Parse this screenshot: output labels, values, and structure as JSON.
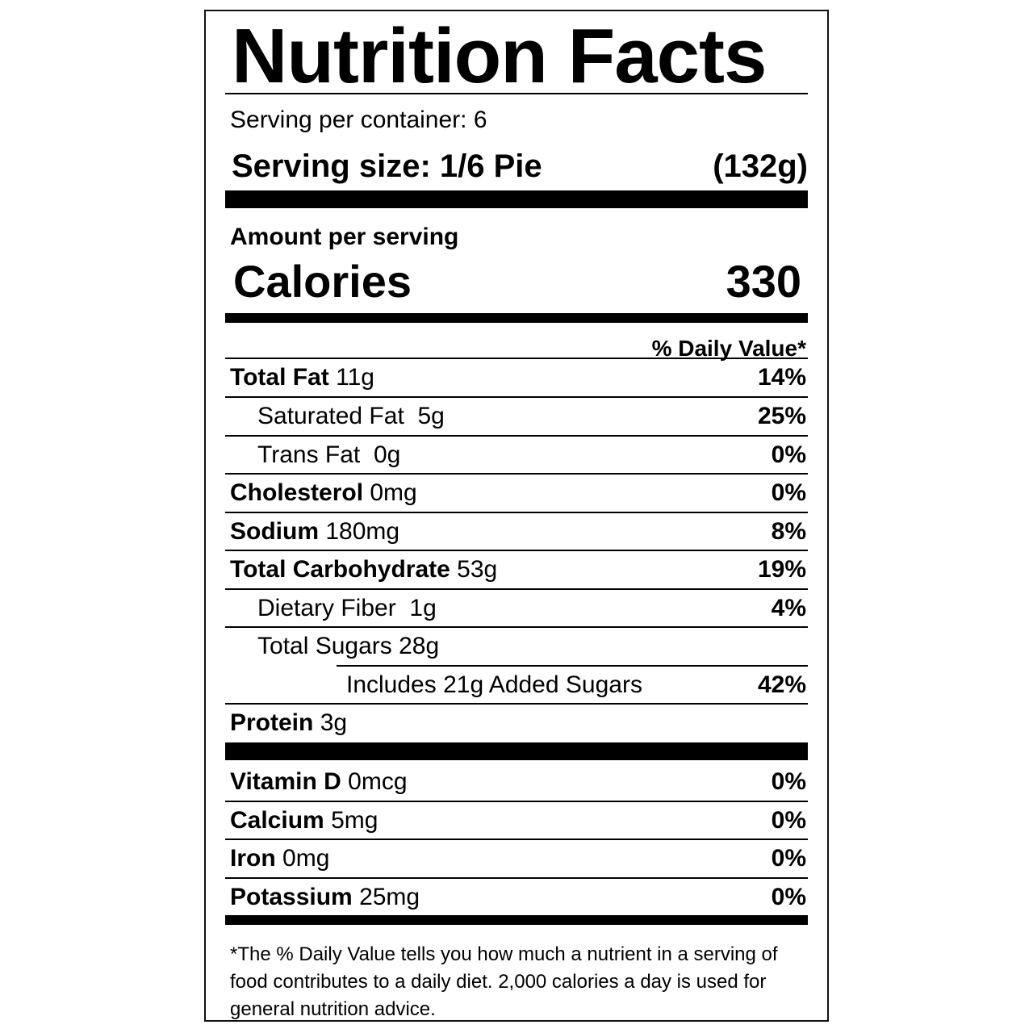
{
  "title": "Nutrition Facts",
  "servings_per_container": "Serving per container: 6",
  "serving_size": {
    "label": "Serving size: 1/6 Pie",
    "weight": "(132g)"
  },
  "amount_per_serving": "Amount per serving",
  "calories": {
    "label": "Calories",
    "value": "330"
  },
  "daily_value_header": "% Daily Value*",
  "nutrients": [
    {
      "name": "Total Fat",
      "amount": "11g",
      "dv": "14%"
    },
    {
      "name": "Saturated Fat",
      "amount": "5g",
      "dv": "25%"
    },
    {
      "name": "Trans Fat",
      "amount": "0g",
      "dv": "0%"
    },
    {
      "name": "Cholesterol",
      "amount": "0mg",
      "dv": "0%"
    },
    {
      "name": "Sodium",
      "amount": "180mg",
      "dv": "8%"
    },
    {
      "name": "Total Carbohydrate",
      "amount": "53g",
      "dv": "19%"
    },
    {
      "name": "Dietary Fiber",
      "amount": "1g",
      "dv": "4%"
    },
    {
      "name": "Total Sugars",
      "amount": "28g",
      "dv": ""
    },
    {
      "name": "Includes 21g Added Sugars",
      "amount": "",
      "dv": "42%"
    },
    {
      "name": "Protein",
      "amount": "3g",
      "dv": ""
    }
  ],
  "vitamins": [
    {
      "name": "Vitamin D",
      "amount": "0mcg",
      "dv": "0%"
    },
    {
      "name": "Calcium",
      "amount": "5mg",
      "dv": "0%"
    },
    {
      "name": "Iron",
      "amount": "0mg",
      "dv": "0%"
    },
    {
      "name": "Potassium",
      "amount": "25mg",
      "dv": "0%"
    }
  ],
  "footnote": "*The % Daily Value tells you how much a nutrient in a serving of food contributes to a daily diet. 2,000 calories a day is used for general nutrition advice."
}
